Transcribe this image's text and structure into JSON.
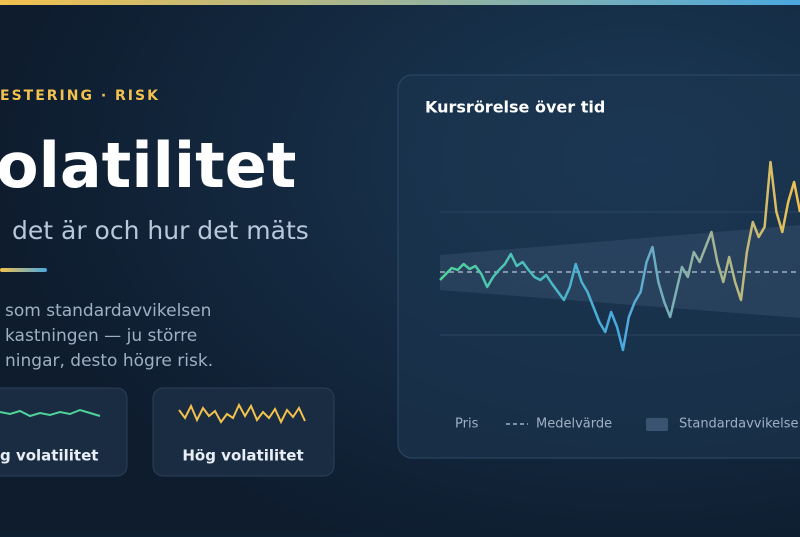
{
  "header": {
    "kicker": "ESTERING · RISK",
    "title": "olatilitet",
    "subtitle": "det är och hur det mäts"
  },
  "body": {
    "lines": [
      "som standardavvikelsen",
      "kastningen — ju större",
      "ningar, desto högre risk."
    ]
  },
  "cards": [
    {
      "label": "g volatilitet"
    },
    {
      "label": "Hög volatilitet"
    }
  ],
  "chart_data": {
    "type": "line",
    "title": "Kursrörelse över tid",
    "xlim": [
      0,
      61
    ],
    "ylim": [
      -130,
      130
    ],
    "series": [
      {
        "name": "Pris",
        "gradient": [
          "#4fd39a",
          "#4aa8e0",
          "#f2c14e"
        ],
        "values": [
          -8,
          -2,
          4,
          2,
          8,
          3,
          6,
          -2,
          -15,
          -5,
          2,
          8,
          18,
          6,
          10,
          2,
          -5,
          -8,
          -3,
          -12,
          -20,
          -28,
          -15,
          8,
          -10,
          -20,
          -35,
          -50,
          -60,
          -40,
          -55,
          -78,
          -45,
          -30,
          -20,
          10,
          25,
          -10,
          -30,
          -45,
          -20,
          5,
          -5,
          20,
          10,
          25,
          40,
          10,
          -10,
          15,
          -10,
          -28,
          20,
          50,
          35,
          45,
          110,
          60,
          40,
          70,
          90,
          60
        ]
      }
    ],
    "mean": {
      "name": "Medelvärde",
      "x": [
        0,
        61
      ],
      "values": [
        0,
        0
      ]
    },
    "band": {
      "name": "Standardavvikelse",
      "x": [
        0,
        61
      ],
      "upper": [
        17,
        47
      ],
      "lower": [
        -18,
        -46
      ]
    }
  }
}
